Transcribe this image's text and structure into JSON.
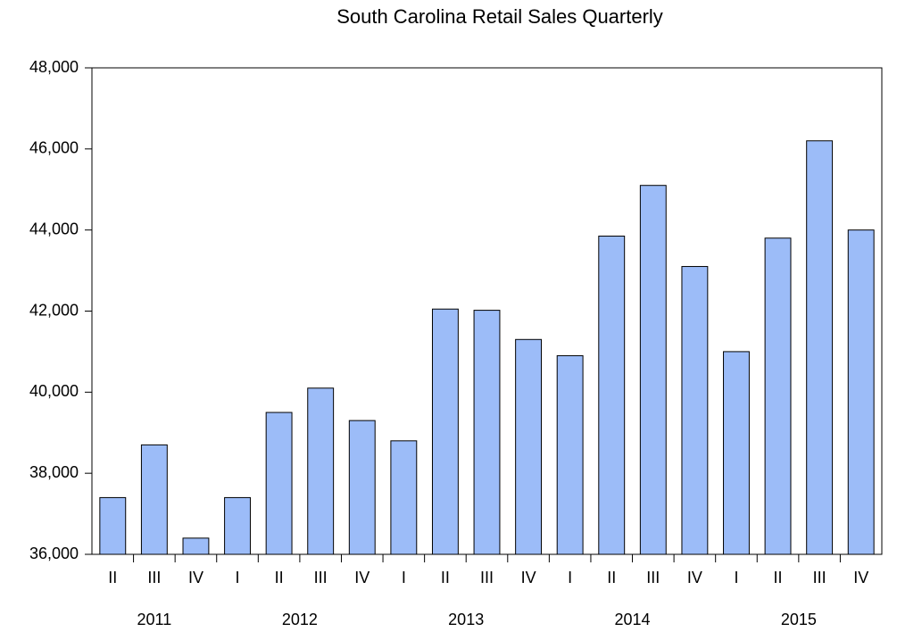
{
  "chart_data": {
    "type": "bar",
    "title": "South Carolina Retail Sales Quarterly",
    "color": "#9cbcf8",
    "groups": [
      {
        "label": "2011",
        "categories": [
          "II",
          "III",
          "IV"
        ],
        "values": [
          37400,
          38700,
          36400
        ]
      },
      {
        "label": "2012",
        "categories": [
          "I",
          "II",
          "III",
          "IV"
        ],
        "values": [
          37400,
          39500,
          40100,
          39300
        ]
      },
      {
        "label": "2013",
        "categories": [
          "I",
          "II",
          "III",
          "IV"
        ],
        "values": [
          38800,
          42050,
          42020,
          41300
        ]
      },
      {
        "label": "2014",
        "categories": [
          "I",
          "II",
          "III",
          "IV"
        ],
        "values": [
          40900,
          43850,
          45100,
          43100
        ]
      },
      {
        "label": "2015",
        "categories": [
          "I",
          "II",
          "III",
          "IV"
        ],
        "values": [
          41000,
          43800,
          46200,
          44000
        ]
      }
    ],
    "ylim": [
      36000,
      48000
    ],
    "yticks": [
      {
        "value": 36000,
        "label": "36,000"
      },
      {
        "value": 38000,
        "label": "38,000"
      },
      {
        "value": 40000,
        "label": "40,000"
      },
      {
        "value": 42000,
        "label": "42,000"
      },
      {
        "value": 44000,
        "label": "44,000"
      },
      {
        "value": 46000,
        "label": "46,000"
      },
      {
        "value": 48000,
        "label": "48,000"
      }
    ],
    "grid": false
  }
}
